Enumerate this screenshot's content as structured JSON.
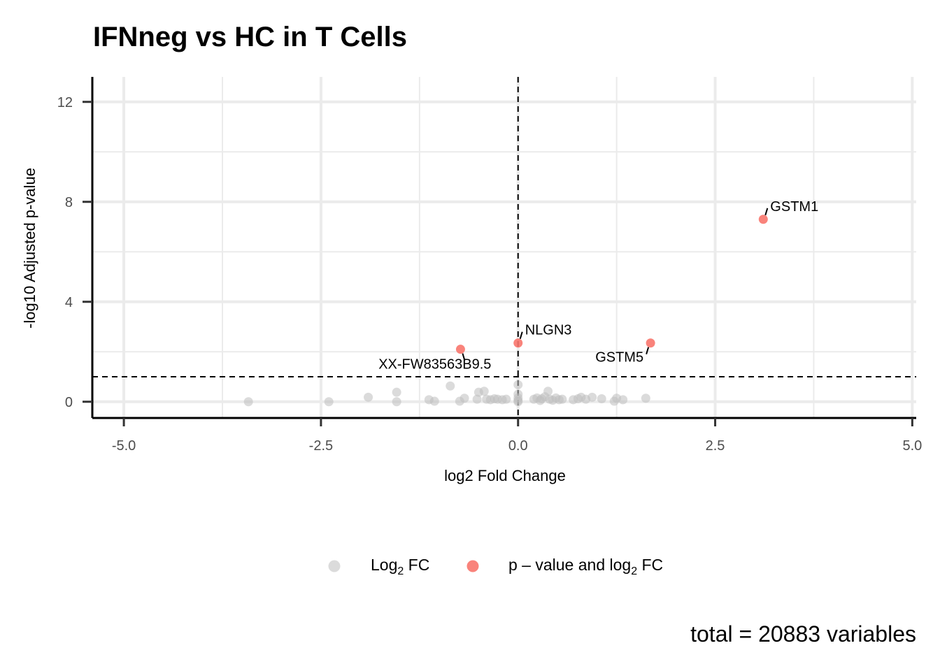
{
  "chart_data": {
    "type": "scatter",
    "title": "IFNneg vs HC in T Cells",
    "xlabel": "log2 Fold Change",
    "ylabel": "-log10 Adjusted p-value",
    "xlim": [
      -5.4,
      5.05
    ],
    "ylim": [
      -0.65,
      13.0
    ],
    "x_ticks": [
      -5.0,
      -2.5,
      0.0,
      2.5,
      5.0
    ],
    "x_tick_labels": [
      "-5.0",
      "-2.5",
      "0.0",
      "2.5",
      "5.0"
    ],
    "y_ticks": [
      0,
      4,
      8,
      12
    ],
    "y_tick_labels": [
      "0",
      "4",
      "8",
      "12"
    ],
    "grid": true,
    "cutoffs": {
      "log2fc": 0.0,
      "neg_log10_p": 1.0
    },
    "legend_position": "bottom",
    "series": [
      {
        "name": "Log2 FC",
        "legend_main": "Log",
        "legend_sub": "2",
        "legend_tail": " FC",
        "color": "#bdbdbd",
        "points": [
          {
            "x": -3.42,
            "y": 0.0
          },
          {
            "x": -2.4,
            "y": 0.0
          },
          {
            "x": -1.9,
            "y": 0.18
          },
          {
            "x": -1.54,
            "y": 0.38
          },
          {
            "x": -1.54,
            "y": 0.0
          },
          {
            "x": -1.13,
            "y": 0.08
          },
          {
            "x": -1.06,
            "y": 0.02
          },
          {
            "x": -0.86,
            "y": 0.63
          },
          {
            "x": -0.74,
            "y": 0.02
          },
          {
            "x": -0.68,
            "y": 0.14
          },
          {
            "x": -0.52,
            "y": 0.1
          },
          {
            "x": -0.5,
            "y": 0.38
          },
          {
            "x": -0.43,
            "y": 0.42
          },
          {
            "x": -0.4,
            "y": 0.1
          },
          {
            "x": -0.35,
            "y": 0.08
          },
          {
            "x": -0.3,
            "y": 0.12
          },
          {
            "x": -0.26,
            "y": 0.1
          },
          {
            "x": -0.2,
            "y": 0.08
          },
          {
            "x": -0.15,
            "y": 0.1
          },
          {
            "x": 0.0,
            "y": 0.68
          },
          {
            "x": 0.0,
            "y": 0.3
          },
          {
            "x": 0.0,
            "y": 0.15
          },
          {
            "x": 0.0,
            "y": 0.05
          },
          {
            "x": 0.0,
            "y": 0.0
          },
          {
            "x": 0.2,
            "y": 0.1
          },
          {
            "x": 0.24,
            "y": 0.15
          },
          {
            "x": 0.28,
            "y": 0.05
          },
          {
            "x": 0.3,
            "y": 0.12
          },
          {
            "x": 0.34,
            "y": 0.2
          },
          {
            "x": 0.38,
            "y": 0.42
          },
          {
            "x": 0.4,
            "y": 0.1
          },
          {
            "x": 0.44,
            "y": 0.06
          },
          {
            "x": 0.48,
            "y": 0.15
          },
          {
            "x": 0.52,
            "y": 0.08
          },
          {
            "x": 0.56,
            "y": 0.1
          },
          {
            "x": 0.7,
            "y": 0.08
          },
          {
            "x": 0.76,
            "y": 0.12
          },
          {
            "x": 0.8,
            "y": 0.18
          },
          {
            "x": 0.86,
            "y": 0.1
          },
          {
            "x": 0.94,
            "y": 0.18
          },
          {
            "x": 1.06,
            "y": 0.12
          },
          {
            "x": 1.22,
            "y": 0.02
          },
          {
            "x": 1.25,
            "y": 0.14
          },
          {
            "x": 1.33,
            "y": 0.08
          },
          {
            "x": 1.62,
            "y": 0.14
          }
        ]
      },
      {
        "name": "p – value and log2 FC",
        "legend_main": "p – value and log",
        "legend_sub": "2",
        "legend_tail": " FC",
        "color": "#f8766d",
        "points": [
          {
            "x": 3.11,
            "y": 7.3,
            "label": "GSTM1"
          },
          {
            "x": 1.68,
            "y": 2.35,
            "label": "GSTM5"
          },
          {
            "x": 0.0,
            "y": 2.35,
            "label": "NLGN3"
          },
          {
            "x": -0.73,
            "y": 2.1,
            "label": "XX-FW83563B9.5"
          }
        ]
      }
    ],
    "caption": "total = 20883 variables"
  }
}
